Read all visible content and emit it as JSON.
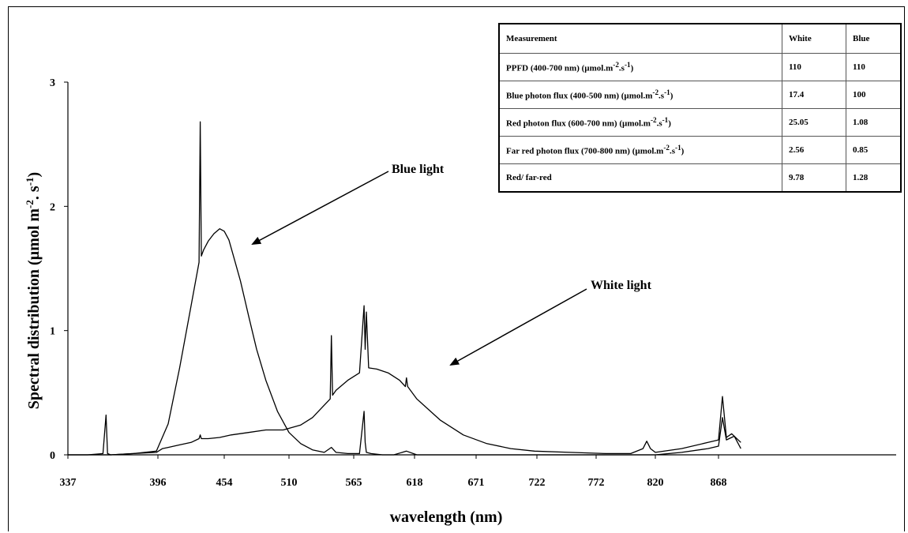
{
  "chart_data": {
    "type": "line",
    "xlabel": "wavelength (nm)",
    "ylabel": "Spectral distribution (µmol m-2.s-1)",
    "ylabel_parts": {
      "main": "Spectral distribution  (µmol m",
      "exp1": "-2",
      "mid": ". s",
      "exp2": "-1",
      "end": ")"
    },
    "x_ticks": [
      "337",
      "396",
      "454",
      "510",
      "565",
      "618",
      "671",
      "722",
      "772",
      "820",
      "868"
    ],
    "y_ticks": [
      "0",
      "1",
      "2",
      "3"
    ],
    "xlim": [
      337,
      885
    ],
    "ylim": [
      0,
      3
    ],
    "grid": false,
    "series": [
      {
        "name": "Blue light",
        "x": [
          337,
          350,
          365,
          380,
          395,
          405,
          415,
          425,
          432,
          433,
          434,
          436,
          440,
          445,
          450,
          454,
          458,
          462,
          468,
          475,
          482,
          490,
          500,
          510,
          520,
          530,
          540,
          546,
          550,
          560,
          570,
          574,
          575,
          576,
          580,
          590,
          600,
          611,
          620,
          640,
          660,
          700,
          750,
          800,
          820,
          840,
          860,
          868,
          871,
          874,
          880,
          885
        ],
        "y": [
          0.0,
          0.0,
          0.0,
          0.01,
          0.03,
          0.25,
          0.7,
          1.2,
          1.55,
          2.68,
          1.6,
          1.65,
          1.72,
          1.78,
          1.82,
          1.8,
          1.73,
          1.6,
          1.4,
          1.12,
          0.85,
          0.6,
          0.35,
          0.18,
          0.09,
          0.04,
          0.02,
          0.06,
          0.02,
          0.01,
          0.01,
          0.35,
          0.1,
          0.02,
          0.01,
          0.0,
          0.0,
          0.03,
          0.0,
          0.0,
          0.0,
          0.0,
          0.0,
          0.0,
          0.0,
          0.02,
          0.05,
          0.07,
          0.3,
          0.12,
          0.15,
          0.05
        ]
      },
      {
        "name": "White light",
        "x": [
          337,
          350,
          360,
          362,
          363,
          365,
          380,
          395,
          400,
          405,
          415,
          425,
          432,
          433,
          434,
          440,
          450,
          460,
          475,
          490,
          505,
          520,
          530,
          540,
          545,
          546,
          547,
          550,
          560,
          570,
          574,
          575,
          576,
          578,
          585,
          595,
          605,
          610,
          611,
          612,
          620,
          640,
          660,
          680,
          700,
          720,
          750,
          780,
          800,
          810,
          813,
          816,
          820,
          840,
          860,
          868,
          871,
          874,
          878,
          885
        ],
        "y": [
          0.0,
          0.0,
          0.01,
          0.32,
          0.01,
          0.0,
          0.01,
          0.02,
          0.05,
          0.06,
          0.08,
          0.1,
          0.13,
          0.16,
          0.13,
          0.13,
          0.14,
          0.16,
          0.18,
          0.2,
          0.2,
          0.24,
          0.3,
          0.4,
          0.45,
          0.96,
          0.48,
          0.52,
          0.6,
          0.66,
          1.2,
          0.85,
          1.15,
          0.7,
          0.69,
          0.66,
          0.6,
          0.55,
          0.62,
          0.55,
          0.45,
          0.28,
          0.16,
          0.09,
          0.05,
          0.03,
          0.02,
          0.01,
          0.01,
          0.05,
          0.11,
          0.05,
          0.02,
          0.05,
          0.1,
          0.12,
          0.47,
          0.14,
          0.17,
          0.1
        ]
      }
    ],
    "annotations": [
      {
        "text": "Blue light",
        "target": [
          462,
          1.7
        ]
      },
      {
        "text": "White light",
        "target": [
          592,
          0.73
        ]
      }
    ]
  },
  "table": {
    "headers": [
      "Measurement",
      "White",
      "Blue"
    ],
    "rows": [
      {
        "label": "PPFD (400-700 nm) (µmol.m",
        "sup1": "-2",
        "mid": ".s",
        "sup2": "-1",
        "end": ")",
        "white": "110",
        "blue": "110"
      },
      {
        "label": "Blue photon flux (400-500 nm) (µmol.m",
        "sup1": "-2",
        "mid": ".s",
        "sup2": "-1",
        "end": ")",
        "white": "17.4",
        "blue": "100"
      },
      {
        "label": "Red photon flux (600-700 nm)  (µmol.m",
        "sup1": "-2",
        "mid": ".s",
        "sup2": "-1",
        "end": ")",
        "white": "25.05",
        "blue": "1.08"
      },
      {
        "label": "Far red photon flux (700-800 nm)  (µmol.m",
        "sup1": "-2",
        "mid": ".s",
        "sup2": "-1",
        "end": ")",
        "white": "2.56",
        "blue": "0.85"
      },
      {
        "label": "Red/ far-red",
        "sup1": "",
        "mid": "",
        "sup2": "",
        "end": "",
        "white": "9.78",
        "blue": "1.28"
      }
    ]
  }
}
